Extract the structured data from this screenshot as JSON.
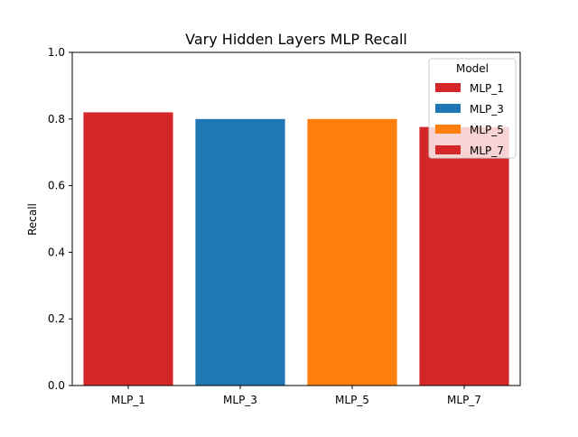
{
  "chart_data": {
    "type": "bar",
    "title": "Vary Hidden Layers MLP Recall",
    "xlabel": "",
    "ylabel": "Recall",
    "categories": [
      "MLP_1",
      "MLP_3",
      "MLP_5",
      "MLP_7"
    ],
    "values": [
      0.82,
      0.8,
      0.8,
      0.776
    ],
    "colors": [
      "#d62728",
      "#1f77b4",
      "#ff7f0e",
      "#d62728"
    ],
    "ylim": [
      0,
      1.0
    ],
    "yticks": [
      0.0,
      0.2,
      0.4,
      0.6,
      0.8,
      1.0
    ],
    "ytick_labels": [
      "0.0",
      "0.2",
      "0.4",
      "0.6",
      "0.8",
      "1.0"
    ],
    "grid": false,
    "legend": {
      "title": "Model",
      "position": "top-right",
      "entries": [
        "MLP_1",
        "MLP_3",
        "MLP_5",
        "MLP_7"
      ]
    }
  }
}
